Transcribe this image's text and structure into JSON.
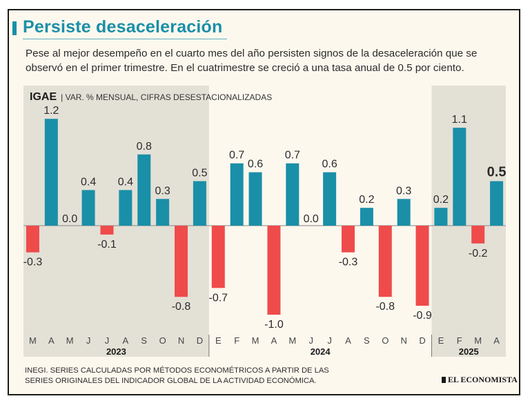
{
  "header": {
    "title": "Persiste desaceleración",
    "subtitle": "Pese al mejor desempeño en el cuarto mes del año persisten signos de la desaceleración que se observó en el primer trimestre. En el cuatrimestre se creció a una tasa anual de 0.5 por ciento."
  },
  "footer": {
    "source": "INEGI. Series calculadas por métodos econométricos a partir de las series originales del Indicador Global de la Actividad Económica.",
    "logo": "EL ECONOMISTA"
  },
  "colors": {
    "positive": "#1a8fa8",
    "negative": "#ef4b4b",
    "shade": "#e3e0d6",
    "background": "#fdf8ee"
  },
  "chart_data": {
    "type": "bar",
    "indicator": "IGAE",
    "description": "VAR. % MENSUAL, CIFRAS DESESTACIONALIZADAS",
    "categories": [
      "M",
      "A",
      "M",
      "J",
      "J",
      "A",
      "S",
      "O",
      "N",
      "D",
      "E",
      "F",
      "M",
      "A",
      "M",
      "J",
      "J",
      "A",
      "S",
      "O",
      "N",
      "D",
      "E",
      "F",
      "M",
      "A"
    ],
    "values": [
      -0.3,
      1.2,
      0.0,
      0.4,
      -0.1,
      0.4,
      0.8,
      0.3,
      -0.8,
      0.5,
      -0.7,
      0.7,
      0.6,
      -1.0,
      0.7,
      0.0,
      0.6,
      -0.3,
      0.2,
      -0.8,
      0.3,
      -0.9,
      0.2,
      1.1,
      -0.2,
      0.5
    ],
    "value_labels": [
      "-0.3",
      "1.2",
      "0.0",
      "0.4",
      "-0.1",
      "0.4",
      "0.8",
      "0.3",
      "-0.8",
      "0.5",
      "-0.7",
      "0.7",
      "0.6",
      "-1.0",
      "0.7",
      "0.0",
      "0.6",
      "-0.3",
      "0.2",
      "-0.8",
      "0.3",
      "-0.9",
      "0.2",
      "1.1",
      "-0.2",
      "0.5"
    ],
    "highlight_last": true,
    "years": [
      {
        "label": "2023",
        "start": 0,
        "end": 9,
        "shaded": true
      },
      {
        "label": "2024",
        "start": 10,
        "end": 21,
        "shaded": false
      },
      {
        "label": "2025",
        "start": 22,
        "end": 25,
        "shaded": true
      }
    ],
    "ylim": [
      -1.1,
      1.35
    ],
    "grid": false
  }
}
